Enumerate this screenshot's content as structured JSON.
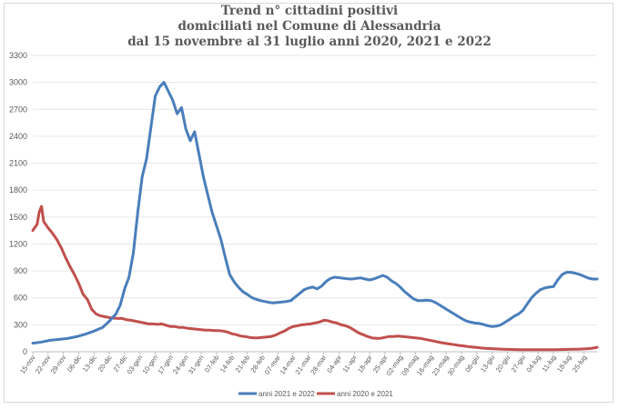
{
  "title_lines": [
    "Trend n° cittadini positivi",
    "domiciliati nel Comune di Alessandria",
    "dal 15 novembre al 31 luglio anni 2020, 2021 e 2022"
  ],
  "chart_data": {
    "type": "line",
    "title": "Trend n° cittadini positivi domiciliati nel Comune di Alessandria dal 15 novembre al 31 luglio anni 2020, 2021 e 2022",
    "xlabel": "",
    "ylabel": "",
    "ylim": [
      0,
      3300
    ],
    "yticks": [
      0,
      300,
      600,
      900,
      1200,
      1500,
      1800,
      2100,
      2400,
      2700,
      3000,
      3300
    ],
    "xtick_labels": [
      "15-nov",
      "22-nov",
      "29-nov",
      "06-dic",
      "13-dic",
      "20-dic",
      "27-dic",
      "03-gen",
      "10-gen",
      "17-gen",
      "24-gen",
      "31-gen",
      "07-feb",
      "14-feb",
      "21-feb",
      "28-feb",
      "07-mar",
      "14-mar",
      "21-mar",
      "28-mar",
      "04-apr",
      "11-apr",
      "18-apr",
      "25-apr",
      "02-mag",
      "09-mag",
      "16-mag",
      "23-mag",
      "30-mag",
      "06-giu",
      "13-giu",
      "20-giu",
      "27-giu",
      "04-lug",
      "11-lug",
      "18-lug",
      "25-lug"
    ],
    "x_unit": "days since 15-nov",
    "x_max": 258,
    "grid": true,
    "legend_position": "bottom",
    "series": [
      {
        "name": "anni 2021 e 2022",
        "color": "#4a7ebb",
        "points": [
          [
            0,
            95
          ],
          [
            4,
            108
          ],
          [
            8,
            128
          ],
          [
            12,
            138
          ],
          [
            16,
            148
          ],
          [
            20,
            168
          ],
          [
            24,
            195
          ],
          [
            28,
            230
          ],
          [
            32,
            272
          ],
          [
            35,
            340
          ],
          [
            38,
            420
          ],
          [
            40,
            520
          ],
          [
            42,
            700
          ],
          [
            44,
            830
          ],
          [
            46,
            1100
          ],
          [
            48,
            1550
          ],
          [
            50,
            1950
          ],
          [
            52,
            2150
          ],
          [
            54,
            2500
          ],
          [
            56,
            2850
          ],
          [
            58,
            2950
          ],
          [
            60,
            3000
          ],
          [
            62,
            2900
          ],
          [
            64,
            2800
          ],
          [
            66,
            2650
          ],
          [
            68,
            2720
          ],
          [
            70,
            2480
          ],
          [
            72,
            2350
          ],
          [
            74,
            2450
          ],
          [
            76,
            2200
          ],
          [
            78,
            1950
          ],
          [
            80,
            1750
          ],
          [
            82,
            1550
          ],
          [
            84,
            1400
          ],
          [
            86,
            1250
          ],
          [
            88,
            1050
          ],
          [
            90,
            860
          ],
          [
            92,
            780
          ],
          [
            94,
            720
          ],
          [
            96,
            670
          ],
          [
            98,
            640
          ],
          [
            100,
            605
          ],
          [
            102,
            585
          ],
          [
            104,
            570
          ],
          [
            106,
            560
          ],
          [
            108,
            550
          ],
          [
            110,
            545
          ],
          [
            112,
            550
          ],
          [
            114,
            555
          ],
          [
            116,
            560
          ],
          [
            118,
            570
          ],
          [
            120,
            610
          ],
          [
            122,
            650
          ],
          [
            124,
            690
          ],
          [
            126,
            710
          ],
          [
            128,
            720
          ],
          [
            130,
            700
          ],
          [
            132,
            730
          ],
          [
            134,
            780
          ],
          [
            136,
            815
          ],
          [
            138,
            830
          ],
          [
            140,
            825
          ],
          [
            142,
            818
          ],
          [
            144,
            812
          ],
          [
            146,
            810
          ],
          [
            148,
            818
          ],
          [
            150,
            822
          ],
          [
            152,
            810
          ],
          [
            154,
            800
          ],
          [
            156,
            812
          ],
          [
            158,
            830
          ],
          [
            160,
            850
          ],
          [
            162,
            830
          ],
          [
            164,
            790
          ],
          [
            166,
            760
          ],
          [
            168,
            720
          ],
          [
            170,
            670
          ],
          [
            172,
            630
          ],
          [
            174,
            590
          ],
          [
            176,
            570
          ],
          [
            178,
            570
          ],
          [
            180,
            575
          ],
          [
            182,
            570
          ],
          [
            184,
            550
          ],
          [
            186,
            520
          ],
          [
            188,
            490
          ],
          [
            190,
            460
          ],
          [
            192,
            430
          ],
          [
            194,
            400
          ],
          [
            196,
            370
          ],
          [
            198,
            345
          ],
          [
            200,
            330
          ],
          [
            202,
            320
          ],
          [
            204,
            315
          ],
          [
            206,
            305
          ],
          [
            208,
            290
          ],
          [
            210,
            280
          ],
          [
            212,
            285
          ],
          [
            214,
            300
          ],
          [
            216,
            330
          ],
          [
            218,
            360
          ],
          [
            220,
            395
          ],
          [
            222,
            420
          ],
          [
            224,
            460
          ],
          [
            226,
            530
          ],
          [
            228,
            600
          ],
          [
            230,
            650
          ],
          [
            232,
            690
          ],
          [
            234,
            710
          ],
          [
            236,
            720
          ],
          [
            238,
            725
          ],
          [
            240,
            800
          ],
          [
            242,
            860
          ],
          [
            244,
            885
          ],
          [
            246,
            885
          ],
          [
            248,
            875
          ],
          [
            250,
            860
          ],
          [
            252,
            840
          ],
          [
            254,
            820
          ],
          [
            256,
            810
          ],
          [
            258,
            810
          ]
        ]
      },
      {
        "name": "anni 2020 e 2021",
        "color": "#c0504d",
        "points": [
          [
            0,
            1350
          ],
          [
            2,
            1420
          ],
          [
            3,
            1560
          ],
          [
            4,
            1620
          ],
          [
            5,
            1450
          ],
          [
            7,
            1380
          ],
          [
            9,
            1320
          ],
          [
            11,
            1250
          ],
          [
            13,
            1160
          ],
          [
            15,
            1050
          ],
          [
            17,
            950
          ],
          [
            19,
            860
          ],
          [
            21,
            760
          ],
          [
            23,
            640
          ],
          [
            25,
            580
          ],
          [
            27,
            470
          ],
          [
            29,
            420
          ],
          [
            31,
            400
          ],
          [
            33,
            390
          ],
          [
            35,
            380
          ],
          [
            37,
            375
          ],
          [
            39,
            370
          ],
          [
            41,
            370
          ],
          [
            43,
            355
          ],
          [
            45,
            350
          ],
          [
            47,
            340
          ],
          [
            49,
            330
          ],
          [
            51,
            320
          ],
          [
            53,
            310
          ],
          [
            55,
            310
          ],
          [
            57,
            305
          ],
          [
            59,
            310
          ],
          [
            61,
            295
          ],
          [
            63,
            280
          ],
          [
            65,
            280
          ],
          [
            67,
            270
          ],
          [
            69,
            270
          ],
          [
            71,
            260
          ],
          [
            73,
            255
          ],
          [
            75,
            250
          ],
          [
            77,
            245
          ],
          [
            79,
            240
          ],
          [
            81,
            240
          ],
          [
            83,
            235
          ],
          [
            85,
            235
          ],
          [
            87,
            230
          ],
          [
            89,
            220
          ],
          [
            91,
            200
          ],
          [
            93,
            190
          ],
          [
            95,
            175
          ],
          [
            97,
            170
          ],
          [
            99,
            160
          ],
          [
            101,
            155
          ],
          [
            103,
            155
          ],
          [
            105,
            160
          ],
          [
            107,
            165
          ],
          [
            109,
            170
          ],
          [
            111,
            185
          ],
          [
            113,
            210
          ],
          [
            115,
            230
          ],
          [
            117,
            260
          ],
          [
            119,
            280
          ],
          [
            121,
            290
          ],
          [
            123,
            300
          ],
          [
            125,
            305
          ],
          [
            127,
            310
          ],
          [
            129,
            320
          ],
          [
            131,
            330
          ],
          [
            133,
            350
          ],
          [
            135,
            345
          ],
          [
            137,
            330
          ],
          [
            139,
            320
          ],
          [
            141,
            300
          ],
          [
            143,
            290
          ],
          [
            145,
            270
          ],
          [
            147,
            240
          ],
          [
            149,
            210
          ],
          [
            151,
            190
          ],
          [
            153,
            170
          ],
          [
            155,
            155
          ],
          [
            157,
            150
          ],
          [
            159,
            150
          ],
          [
            161,
            160
          ],
          [
            163,
            170
          ],
          [
            165,
            170
          ],
          [
            167,
            175
          ],
          [
            169,
            170
          ],
          [
            171,
            165
          ],
          [
            173,
            160
          ],
          [
            175,
            155
          ],
          [
            177,
            150
          ],
          [
            179,
            140
          ],
          [
            181,
            130
          ],
          [
            183,
            120
          ],
          [
            185,
            110
          ],
          [
            187,
            100
          ],
          [
            189,
            92
          ],
          [
            191,
            85
          ],
          [
            193,
            78
          ],
          [
            195,
            70
          ],
          [
            197,
            65
          ],
          [
            199,
            58
          ],
          [
            201,
            52
          ],
          [
            203,
            48
          ],
          [
            205,
            42
          ],
          [
            207,
            38
          ],
          [
            209,
            35
          ],
          [
            211,
            32
          ],
          [
            213,
            30
          ],
          [
            215,
            28
          ],
          [
            217,
            26
          ],
          [
            219,
            25
          ],
          [
            221,
            24
          ],
          [
            223,
            23
          ],
          [
            225,
            22
          ],
          [
            227,
            22
          ],
          [
            229,
            22
          ],
          [
            231,
            22
          ],
          [
            233,
            22
          ],
          [
            235,
            22
          ],
          [
            237,
            22
          ],
          [
            239,
            23
          ],
          [
            241,
            24
          ],
          [
            243,
            25
          ],
          [
            245,
            26
          ],
          [
            247,
            27
          ],
          [
            249,
            28
          ],
          [
            251,
            30
          ],
          [
            253,
            32
          ],
          [
            255,
            36
          ],
          [
            257,
            45
          ],
          [
            258,
            50
          ]
        ]
      }
    ]
  }
}
